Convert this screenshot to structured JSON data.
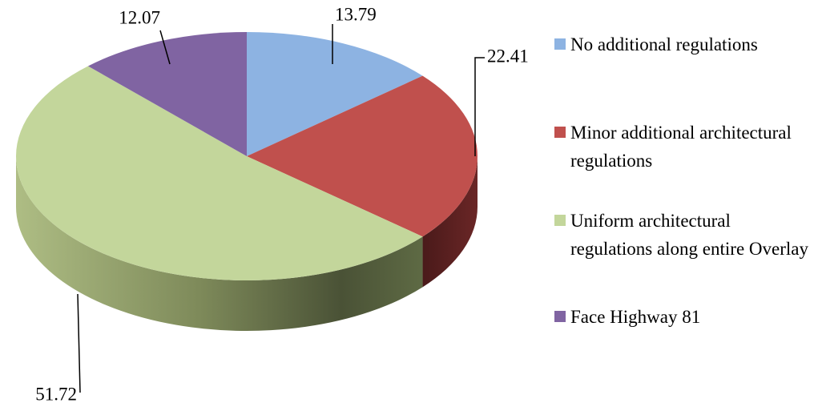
{
  "chart_data": {
    "type": "pie3d",
    "categories": [
      "No additional regulations",
      "Minor additional architectural regulations",
      "Uniform architectural regulations along entire Overlay",
      "Face Highway 81"
    ],
    "values": [
      13.79,
      22.41,
      51.72,
      12.07
    ],
    "colors": [
      "#8db3e2",
      "#c0504d",
      "#c3d69b",
      "#8064a2"
    ],
    "legend": "right"
  }
}
